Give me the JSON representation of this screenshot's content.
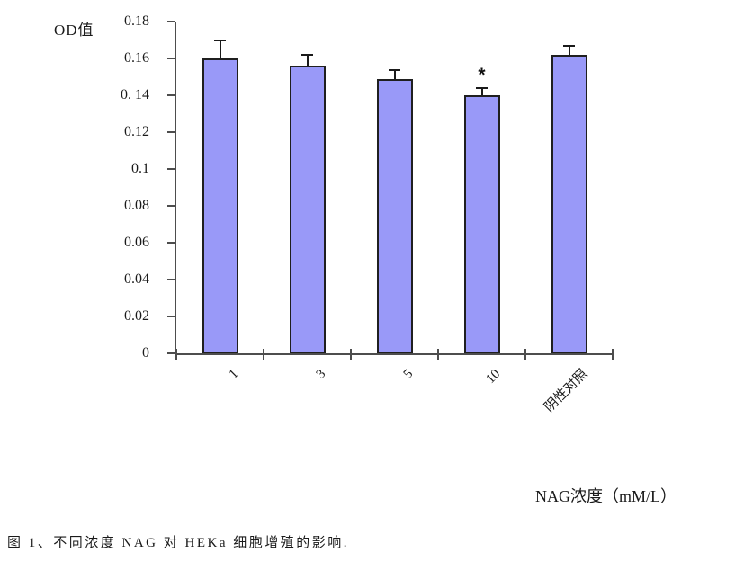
{
  "figure": {
    "ylabel": "OD值",
    "xlabel": "NAG浓度（mM/L）",
    "caption": "图 1、不同浓度 NAG 对 HEKa 细胞增殖的影响."
  },
  "chart_data": {
    "type": "bar",
    "title": "",
    "ylabel": "OD值",
    "xlabel": "NAG浓度（mM/L）",
    "categories": [
      "1",
      "3",
      "5",
      "10",
      "阴性对照"
    ],
    "values": [
      0.16,
      0.156,
      0.149,
      0.14,
      0.162
    ],
    "error_bars_plus": [
      0.01,
      0.006,
      0.0045,
      0.004,
      0.005
    ],
    "annotations": [
      {
        "category_index": 3,
        "text": "*",
        "meaning": "significance-marker"
      }
    ],
    "ylim": [
      0,
      0.18
    ],
    "ytick_values": [
      0.18,
      0.16,
      0.14,
      0.12,
      0.1,
      0.08,
      0.06,
      0.04,
      0.02,
      0
    ],
    "ytick_labels": [
      "0.18",
      "0.16",
      "0. 14",
      "0.12",
      "0.1",
      "0.08",
      "0.06",
      "0.04",
      "0.02",
      "0"
    ],
    "grid": false,
    "legend": "none",
    "bar_color": "#9999f8",
    "bar_border_color": "#1f1f1f",
    "axis_color": "#4d4d4d"
  }
}
